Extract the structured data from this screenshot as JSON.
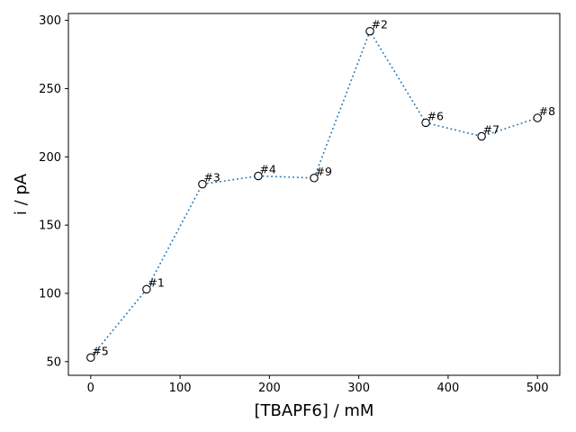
{
  "chart_data": {
    "type": "line",
    "xlabel": "[TBAPF6] / mM",
    "ylabel": "i / pA",
    "xlim": [
      -25,
      525
    ],
    "ylim": [
      40,
      305
    ],
    "xticks": [
      0,
      100,
      200,
      300,
      400,
      500
    ],
    "yticks": [
      50,
      100,
      150,
      200,
      250,
      300
    ],
    "grid": false,
    "line_style": "dotted",
    "line_color": "#1f77b4",
    "marker": "open-circle",
    "points": [
      {
        "x": 0,
        "y": 53,
        "label": "#5"
      },
      {
        "x": 62.5,
        "y": 103,
        "label": "#1"
      },
      {
        "x": 125,
        "y": 180,
        "label": "#3"
      },
      {
        "x": 187.5,
        "y": 186,
        "label": "#4"
      },
      {
        "x": 250,
        "y": 184.5,
        "label": "#9"
      },
      {
        "x": 312.5,
        "y": 292,
        "label": "#2"
      },
      {
        "x": 375,
        "y": 225,
        "label": "#6"
      },
      {
        "x": 437.5,
        "y": 215,
        "label": "#7"
      },
      {
        "x": 500,
        "y": 228.5,
        "label": "#8"
      }
    ]
  }
}
